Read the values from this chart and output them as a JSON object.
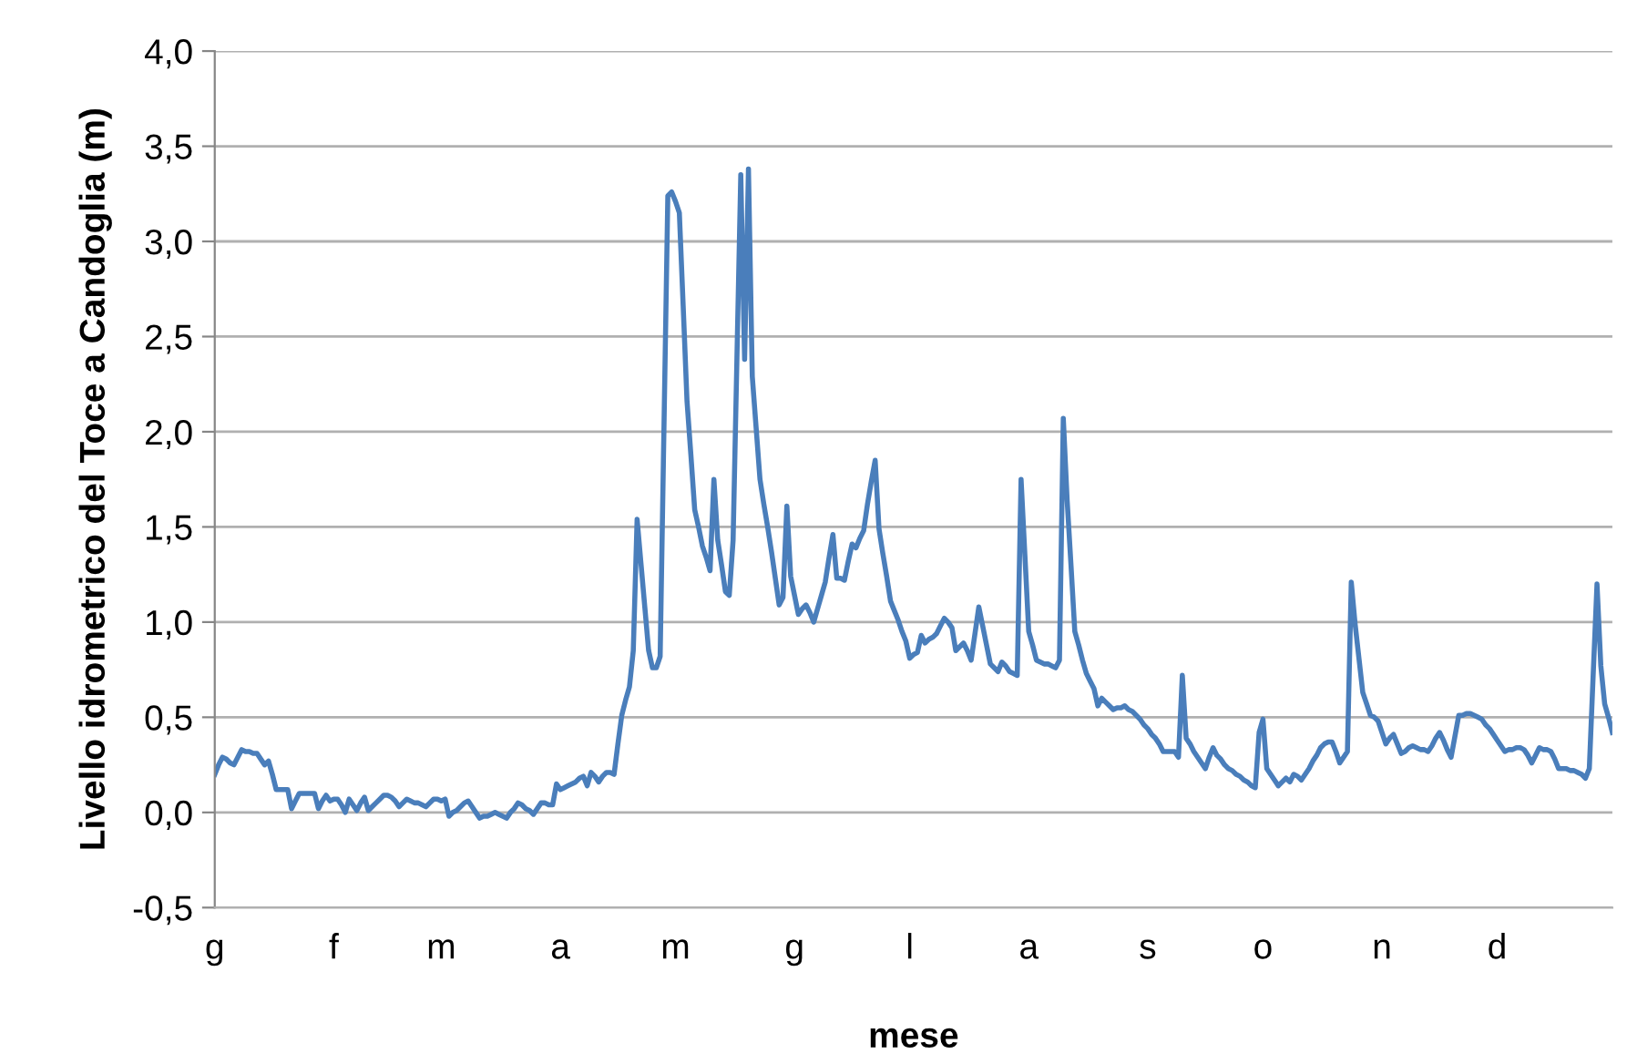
{
  "chart_data": {
    "type": "line",
    "xlabel": "mese",
    "ylabel": "Livello idrometrico del Toce a Candoglia (m)",
    "categories": [
      "g",
      null,
      null,
      null,
      null,
      null,
      null,
      null,
      null,
      null,
      null,
      null,
      null,
      null,
      null,
      null,
      null,
      null,
      null,
      null,
      null,
      null,
      null,
      null,
      null,
      null,
      null,
      null,
      null,
      null,
      null,
      "f",
      null,
      null,
      null,
      null,
      null,
      null,
      null,
      null,
      null,
      null,
      null,
      null,
      null,
      null,
      null,
      null,
      null,
      null,
      null,
      null,
      null,
      null,
      null,
      null,
      null,
      null,
      null,
      "m",
      null,
      null,
      null,
      null,
      null,
      null,
      null,
      null,
      null,
      null,
      null,
      null,
      null,
      null,
      null,
      null,
      null,
      null,
      null,
      null,
      null,
      null,
      null,
      null,
      null,
      null,
      null,
      null,
      null,
      null,
      "a",
      null,
      null,
      null,
      null,
      null,
      null,
      null,
      null,
      null,
      null,
      null,
      null,
      null,
      null,
      null,
      null,
      null,
      null,
      null,
      null,
      null,
      null,
      null,
      null,
      null,
      null,
      null,
      null,
      null,
      "m",
      null,
      null,
      null,
      null,
      null,
      null,
      null,
      null,
      null,
      null,
      null,
      null,
      null,
      null,
      null,
      null,
      null,
      null,
      null,
      null,
      null,
      null,
      null,
      null,
      null,
      null,
      null,
      null,
      null,
      null,
      "g",
      null,
      null,
      null,
      null,
      null,
      null,
      null,
      null,
      null,
      null,
      null,
      null,
      null,
      null,
      null,
      null,
      null,
      null,
      null,
      null,
      null,
      null,
      null,
      null,
      null,
      null,
      null,
      null,
      null,
      "l",
      null,
      null,
      null,
      null,
      null,
      null,
      null,
      null,
      null,
      null,
      null,
      null,
      null,
      null,
      null,
      null,
      null,
      null,
      null,
      null,
      null,
      null,
      null,
      null,
      null,
      null,
      null,
      null,
      null,
      null,
      "a",
      null,
      null,
      null,
      null,
      null,
      null,
      null,
      null,
      null,
      null,
      null,
      null,
      null,
      null,
      null,
      null,
      null,
      null,
      null,
      null,
      null,
      null,
      null,
      null,
      null,
      null,
      null,
      null,
      null,
      null,
      "s",
      null,
      null,
      null,
      null,
      null,
      null,
      null,
      null,
      null,
      null,
      null,
      null,
      null,
      null,
      null,
      null,
      null,
      null,
      null,
      null,
      null,
      null,
      null,
      null,
      null,
      null,
      null,
      null,
      null,
      "o",
      null,
      null,
      null,
      null,
      null,
      null,
      null,
      null,
      null,
      null,
      null,
      null,
      null,
      null,
      null,
      null,
      null,
      null,
      null,
      null,
      null,
      null,
      null,
      null,
      null,
      null,
      null,
      null,
      null,
      null,
      "n",
      null,
      null,
      null,
      null,
      null,
      null,
      null,
      null,
      null,
      null,
      null,
      null,
      null,
      null,
      null,
      null,
      null,
      null,
      null,
      null,
      null,
      null,
      null,
      null,
      null,
      null,
      null,
      null,
      null,
      "d",
      null,
      null,
      null,
      null,
      null,
      null,
      null,
      null,
      null,
      null,
      null,
      null,
      null,
      null,
      null,
      null,
      null,
      null,
      null,
      null,
      null,
      null,
      null,
      null,
      null,
      null,
      null,
      null,
      null,
      null
    ],
    "ylim": [
      -0.5,
      4.0
    ],
    "yticks": [
      {
        "value": -0.5,
        "label": "-0,5"
      },
      {
        "value": 0.0,
        "label": "0,0"
      },
      {
        "value": 0.5,
        "label": "0,5"
      },
      {
        "value": 1.0,
        "label": "1,0"
      },
      {
        "value": 1.5,
        "label": "1,5"
      },
      {
        "value": 2.0,
        "label": "2,0"
      },
      {
        "value": 2.5,
        "label": "2,5"
      },
      {
        "value": 3.0,
        "label": "3,0"
      },
      {
        "value": 3.5,
        "label": "3,5"
      },
      {
        "value": 4.0,
        "label": "4,0"
      }
    ],
    "grid": "y",
    "marker": "none",
    "line_style": "solid",
    "series": [
      {
        "color": "#4a7ebb",
        "values": [
          0.2,
          0.25,
          0.29,
          0.28,
          0.26,
          0.25,
          0.29,
          0.33,
          0.32,
          0.32,
          0.31,
          0.31,
          0.28,
          0.25,
          0.27,
          0.2,
          0.12,
          0.12,
          0.12,
          0.12,
          0.02,
          0.06,
          0.1,
          0.1,
          0.1,
          0.1,
          0.1,
          0.02,
          0.06,
          0.09,
          0.06,
          0.07,
          0.07,
          0.04,
          0.0,
          0.07,
          0.04,
          0.01,
          0.05,
          0.08,
          0.01,
          0.03,
          0.05,
          0.07,
          0.09,
          0.09,
          0.08,
          0.06,
          0.03,
          0.05,
          0.07,
          0.06,
          0.05,
          0.05,
          0.04,
          0.03,
          0.05,
          0.07,
          0.07,
          0.06,
          0.07,
          -0.02,
          0.0,
          0.01,
          0.03,
          0.05,
          0.06,
          0.03,
          0.0,
          -0.03,
          -0.02,
          -0.02,
          -0.01,
          0.0,
          -0.01,
          -0.02,
          -0.03,
          0.0,
          0.02,
          0.05,
          0.04,
          0.02,
          0.01,
          -0.01,
          0.02,
          0.05,
          0.05,
          0.04,
          0.04,
          0.15,
          0.12,
          0.13,
          0.14,
          0.15,
          0.16,
          0.18,
          0.19,
          0.14,
          0.21,
          0.19,
          0.16,
          0.19,
          0.21,
          0.21,
          0.2,
          0.36,
          0.51,
          0.59,
          0.66,
          0.85,
          1.54,
          1.31,
          1.08,
          0.85,
          0.76,
          0.76,
          0.82,
          2.03,
          3.24,
          3.26,
          3.21,
          3.15,
          2.66,
          2.16,
          1.88,
          1.59,
          1.5,
          1.4,
          1.34,
          1.27,
          1.75,
          1.43,
          1.3,
          1.16,
          1.14,
          1.43,
          2.39,
          3.35,
          2.38,
          3.38,
          2.29,
          2.02,
          1.75,
          1.62,
          1.5,
          1.37,
          1.23,
          1.09,
          1.13,
          1.61,
          1.24,
          1.14,
          1.04,
          1.07,
          1.09,
          1.05,
          1.0,
          1.07,
          1.14,
          1.21,
          1.34,
          1.46,
          1.23,
          1.23,
          1.22,
          1.32,
          1.41,
          1.39,
          1.44,
          1.48,
          1.62,
          1.74,
          1.85,
          1.49,
          1.36,
          1.24,
          1.11,
          1.06,
          1.01,
          0.95,
          0.9,
          0.81,
          0.83,
          0.84,
          0.93,
          0.89,
          0.91,
          0.92,
          0.94,
          0.98,
          1.02,
          1.0,
          0.97,
          0.85,
          0.87,
          0.89,
          0.85,
          0.8,
          0.94,
          1.08,
          0.98,
          0.88,
          0.78,
          0.76,
          0.74,
          0.79,
          0.77,
          0.74,
          0.73,
          0.72,
          1.75,
          1.35,
          0.95,
          0.88,
          0.8,
          0.79,
          0.78,
          0.78,
          0.77,
          0.76,
          0.8,
          2.07,
          1.64,
          1.3,
          0.95,
          0.88,
          0.8,
          0.73,
          0.69,
          0.65,
          0.56,
          0.6,
          0.58,
          0.56,
          0.54,
          0.55,
          0.55,
          0.56,
          0.54,
          0.53,
          0.51,
          0.49,
          0.46,
          0.44,
          0.41,
          0.39,
          0.36,
          0.32,
          0.32,
          0.32,
          0.32,
          0.29,
          0.72,
          0.39,
          0.36,
          0.32,
          0.29,
          0.26,
          0.23,
          0.29,
          0.34,
          0.3,
          0.28,
          0.25,
          0.23,
          0.22,
          0.2,
          0.19,
          0.17,
          0.16,
          0.14,
          0.13,
          0.42,
          0.49,
          0.23,
          0.2,
          0.17,
          0.14,
          0.16,
          0.18,
          0.16,
          0.2,
          0.19,
          0.17,
          0.2,
          0.23,
          0.27,
          0.3,
          0.34,
          0.36,
          0.37,
          0.37,
          0.32,
          0.26,
          0.29,
          0.32,
          1.21,
          0.99,
          0.81,
          0.63,
          0.57,
          0.51,
          0.5,
          0.48,
          0.42,
          0.36,
          0.39,
          0.41,
          0.36,
          0.31,
          0.32,
          0.34,
          0.35,
          0.34,
          0.33,
          0.33,
          0.32,
          0.35,
          0.39,
          0.42,
          0.38,
          0.33,
          0.29,
          0.4,
          0.51,
          0.51,
          0.52,
          0.52,
          0.51,
          0.5,
          0.49,
          0.46,
          0.44,
          0.41,
          0.38,
          0.35,
          0.32,
          0.33,
          0.33,
          0.34,
          0.34,
          0.33,
          0.3,
          0.26,
          0.3,
          0.34,
          0.33,
          0.33,
          0.32,
          0.28,
          0.23,
          0.23,
          0.23,
          0.22,
          0.22,
          0.21,
          0.2,
          0.18,
          0.23,
          0.72,
          1.2,
          0.77,
          0.57,
          0.5,
          0.42
        ]
      }
    ]
  }
}
